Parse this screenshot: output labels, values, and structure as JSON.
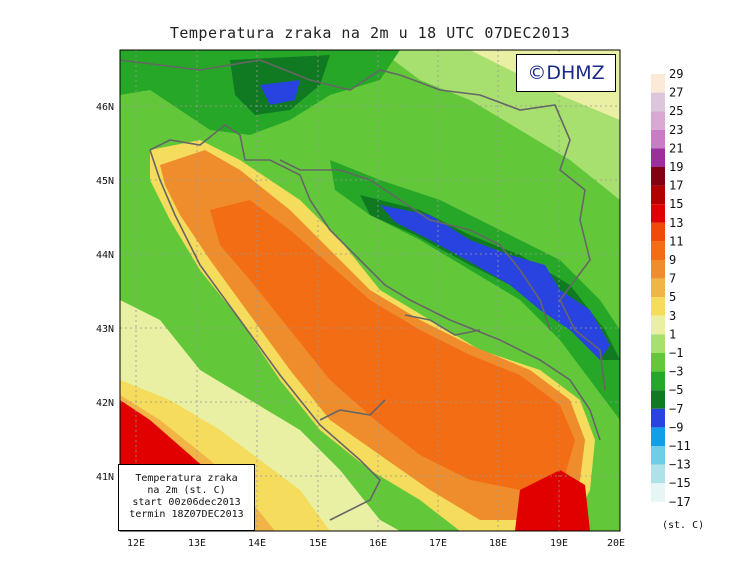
{
  "title": "Temperatura zraka na 2m u 18 UTC 07DEC2013",
  "logo_text": "©DHMZ",
  "info_box": {
    "line1": "Temperatura zraka",
    "line2": "na 2m (st. C)",
    "line3": "start 00z06dec2013",
    "line4": "termin 18Z07DEC2013"
  },
  "lon_labels": [
    "12E",
    "13E",
    "14E",
    "15E",
    "16E",
    "17E",
    "18E",
    "19E",
    "20E"
  ],
  "lat_labels": [
    "41N",
    "42N",
    "43N",
    "44N",
    "45N",
    "46N"
  ],
  "legend": {
    "unit": "(st. C)",
    "labels": [
      "29",
      "27",
      "25",
      "23",
      "21",
      "19",
      "17",
      "15",
      "13",
      "11",
      "9",
      "7",
      "5",
      "3",
      "1",
      "−1",
      "−3",
      "−5",
      "−7",
      "−9",
      "−11",
      "−13",
      "−15",
      "−17"
    ],
    "colors": [
      "#fde9d8",
      "#dcc6dc",
      "#d9a9d4",
      "#c77cc4",
      "#9b2f9b",
      "#820012",
      "#b00000",
      "#e00000",
      "#f04a0a",
      "#f36d14",
      "#ef8d2c",
      "#f1b547",
      "#f5dc5c",
      "#e9f0a3",
      "#a8e070",
      "#62c83a",
      "#27a728",
      "#107a22",
      "#2943e0",
      "#119fe9",
      "#6fcde8",
      "#aee1e8",
      "#e6f6f7"
    ]
  },
  "colors": {
    "sea_warm": "#f36d14",
    "sea_mid": "#ef8d2c",
    "coast_yellow": "#f1b547",
    "land_green": "#27a728",
    "mountain_dark": "#107a22",
    "cold_blue": "#2943e0",
    "hot_red": "#e00000",
    "border": "#666666"
  }
}
